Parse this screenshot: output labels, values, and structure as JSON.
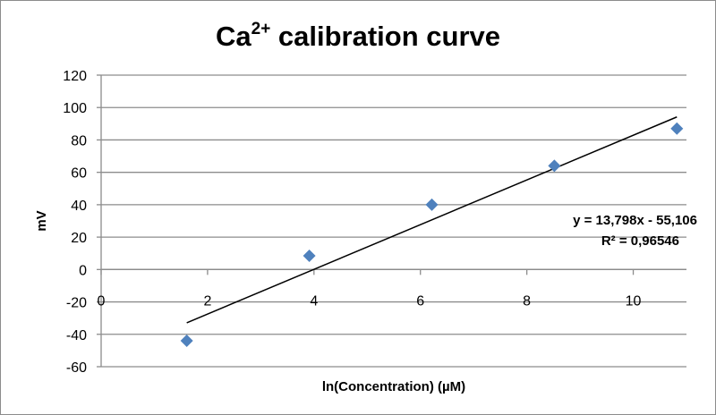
{
  "chart_data": {
    "type": "scatter",
    "title": "Ca",
    "title_superscript": "2+",
    "title_suffix": " calibration curve",
    "xlabel": "ln(Concentration) (µM)",
    "ylabel": "mV",
    "xlim": [
      0,
      11
    ],
    "ylim": [
      -60,
      120
    ],
    "xticks": [
      0,
      2,
      4,
      6,
      8,
      10
    ],
    "yticks": [
      -60,
      -40,
      -20,
      0,
      20,
      40,
      60,
      80,
      100,
      120
    ],
    "grid": "horizontal",
    "legend": "none",
    "marker": "diamond",
    "marker_color": "#4f81bd",
    "series": [
      {
        "x": [
          1.609,
          3.912,
          6.215,
          8.517,
          10.82
        ],
        "y": [
          -44,
          8.5,
          40,
          64,
          87
        ]
      }
    ],
    "trendline": {
      "type": "linear",
      "slope": 13.798,
      "intercept": -55.106,
      "x_range": [
        1.609,
        10.82
      ],
      "color": "#000000",
      "equation_label": "y = 13,798x - 55,106",
      "r2_label": "R² = 0,96546"
    }
  }
}
